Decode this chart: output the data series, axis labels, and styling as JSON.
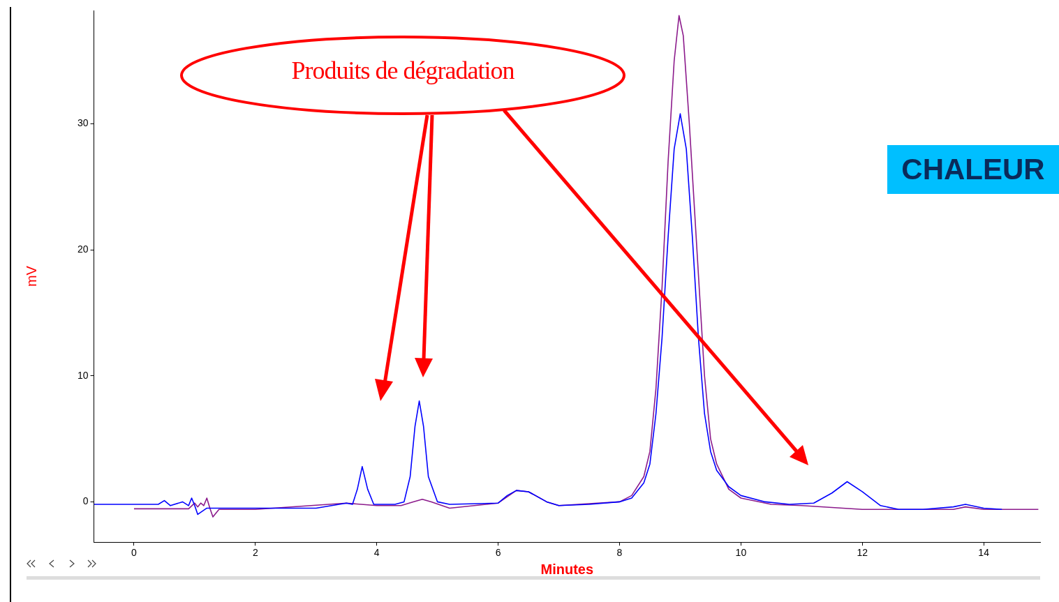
{
  "chart_data": {
    "type": "line",
    "xlabel": "Minutes",
    "ylabel": "mV",
    "xlim": [
      -0.66,
      14.93
    ],
    "ylim": [
      -3.2,
      39
    ],
    "xticks": [
      0,
      2,
      4,
      6,
      8,
      10,
      12,
      14
    ],
    "yticks": [
      0,
      10,
      20,
      30
    ],
    "grid": false,
    "legend": false,
    "marker": "none",
    "line_style": "solid",
    "annotations": [
      "Produits de dégradation",
      "CHALEUR"
    ],
    "series": [
      {
        "color": "#0000ff",
        "x": [
          -0.66,
          0.4,
          0.5,
          0.6,
          0.8,
          0.9,
          0.95,
          1.0,
          1.05,
          1.2,
          1.5,
          2,
          3,
          3.5,
          3.6,
          3.68,
          3.76,
          3.85,
          3.95,
          4.3,
          4.45,
          4.55,
          4.63,
          4.7,
          4.77,
          4.85,
          5.0,
          5.2,
          6.0,
          6.15,
          6.3,
          6.5,
          6.8,
          7.0,
          7.5,
          8.0,
          8.2,
          8.4,
          8.5,
          8.6,
          8.7,
          8.8,
          8.9,
          9.0,
          9.1,
          9.2,
          9.3,
          9.4,
          9.5,
          9.6,
          9.8,
          10.0,
          10.4,
          10.8,
          11.2,
          11.5,
          11.75,
          12.0,
          12.3,
          12.6,
          13.0,
          13.5,
          13.7,
          14.0,
          14.3
        ],
        "values": [
          -0.2,
          -0.2,
          0.1,
          -0.3,
          0.0,
          -0.3,
          0.3,
          -0.3,
          -1.0,
          -0.5,
          -0.5,
          -0.5,
          -0.5,
          -0.1,
          -0.2,
          1.0,
          2.8,
          1.0,
          -0.2,
          -0.2,
          0.0,
          2,
          6,
          8.0,
          6,
          2,
          0.0,
          -0.2,
          -0.1,
          0.5,
          0.9,
          0.8,
          0.0,
          -0.3,
          -0.2,
          0.0,
          0.3,
          1.5,
          3,
          7,
          13,
          21,
          28,
          30.8,
          28,
          21,
          13,
          7,
          4,
          2.5,
          1.2,
          0.5,
          0.0,
          -0.2,
          -0.1,
          0.7,
          1.6,
          0.8,
          -0.3,
          -0.6,
          -0.6,
          -0.4,
          -0.2,
          -0.5,
          -0.6
        ]
      },
      {
        "color": "#8b1a8b",
        "x": [
          0,
          0.9,
          1.0,
          1.05,
          1.1,
          1.15,
          1.2,
          1.25,
          1.3,
          1.4,
          2,
          3.5,
          4.0,
          4.4,
          4.6,
          4.75,
          4.9,
          5.2,
          5.8,
          6.0,
          6.3,
          6.5,
          6.8,
          7.0,
          8.0,
          8.2,
          8.4,
          8.5,
          8.6,
          8.7,
          8.8,
          8.9,
          8.98,
          9.05,
          9.15,
          9.3,
          9.4,
          9.5,
          9.6,
          9.8,
          10.0,
          10.5,
          11,
          12,
          12.5,
          13.5,
          13.7,
          14.0,
          14.9
        ],
        "values": [
          -0.55,
          -0.55,
          -0.1,
          -0.4,
          -0.1,
          -0.3,
          0.3,
          -0.5,
          -1.2,
          -0.6,
          -0.6,
          -0.1,
          -0.3,
          -0.3,
          0.0,
          0.2,
          0.0,
          -0.5,
          -0.2,
          -0.1,
          0.9,
          0.8,
          0.0,
          -0.3,
          0.0,
          0.5,
          2,
          4,
          9,
          17,
          27,
          35,
          38.6,
          37,
          30,
          18,
          10,
          5,
          3,
          1.0,
          0.3,
          -0.2,
          -0.3,
          -0.6,
          -0.6,
          -0.6,
          -0.4,
          -0.6,
          -0.6
        ]
      }
    ]
  }
}
